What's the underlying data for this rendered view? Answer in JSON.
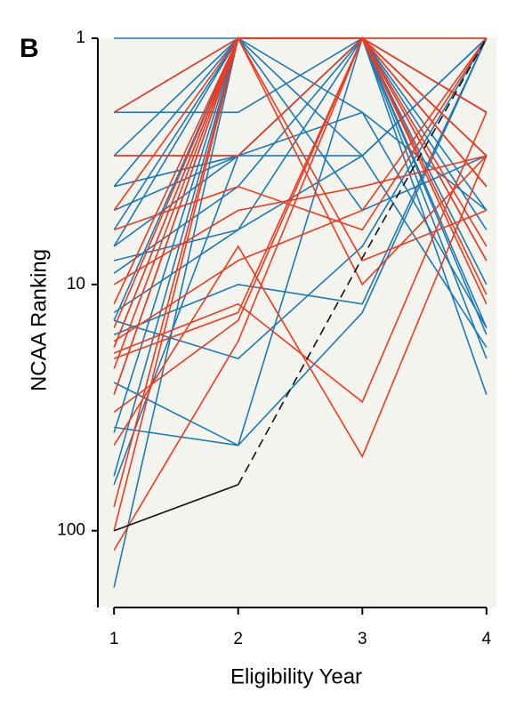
{
  "chart_data": {
    "type": "line",
    "panel_label": "B",
    "x_label": "Eligibility Year",
    "y_label": "NCAA Ranking",
    "x": [
      1,
      2,
      3,
      4
    ],
    "xlim": [
      0.87,
      4.08
    ],
    "xticks": [
      1,
      2,
      3,
      4
    ],
    "ylim": [
      1,
      205
    ],
    "yticks": [
      1,
      10,
      100
    ],
    "log_scale": true,
    "y_inverted": true,
    "background": "#f4f4ee",
    "series": [
      {
        "color": "#1c7ab5",
        "values": [
          1,
          1,
          1,
          1
        ]
      },
      {
        "color": "#1c7ab5",
        "values": [
          2,
          1,
          1,
          2
        ]
      },
      {
        "color": "#1c7ab5",
        "values": [
          2,
          2,
          1,
          5
        ]
      },
      {
        "color": "#1c7ab5",
        "values": [
          3,
          1,
          3,
          1
        ]
      },
      {
        "color": "#1c7ab5",
        "values": [
          4,
          3,
          1,
          2
        ]
      },
      {
        "color": "#1c7ab5",
        "values": [
          4,
          1,
          1,
          4
        ]
      },
      {
        "color": "#1c7ab5",
        "values": [
          5,
          3,
          2,
          15
        ]
      },
      {
        "color": "#1c7ab5",
        "values": [
          6,
          1,
          1,
          16
        ]
      },
      {
        "color": "#1c7ab5",
        "values": [
          7,
          3,
          1,
          3
        ]
      },
      {
        "color": "#1c7ab5",
        "values": [
          7,
          1,
          2,
          5
        ]
      },
      {
        "color": "#1c7ab5",
        "values": [
          8,
          6,
          3,
          18
        ]
      },
      {
        "color": "#1c7ab5",
        "values": [
          9,
          4,
          1,
          20
        ]
      },
      {
        "color": "#1c7ab5",
        "values": [
          13,
          6,
          1,
          8
        ]
      },
      {
        "color": "#1c7ab5",
        "values": [
          14,
          1,
          1,
          28
        ]
      },
      {
        "color": "#1c7ab5",
        "values": [
          16,
          10,
          12,
          1
        ]
      },
      {
        "color": "#1c7ab5",
        "values": [
          18,
          1,
          1,
          2
        ]
      },
      {
        "color": "#1c7ab5",
        "values": [
          25,
          45,
          1,
          15
        ]
      },
      {
        "color": "#1c7ab5",
        "values": [
          28,
          1,
          5,
          3
        ]
      },
      {
        "color": "#1c7ab5",
        "values": [
          38,
          45,
          13,
          1
        ]
      },
      {
        "color": "#1c7ab5",
        "values": [
          40,
          1,
          1,
          6
        ]
      },
      {
        "color": "#1c7ab5",
        "values": [
          60,
          1,
          1,
          3
        ]
      },
      {
        "color": "#1c7ab5",
        "values": [
          65,
          3,
          1,
          2
        ]
      },
      {
        "color": "#1c7ab5",
        "values": [
          170,
          1,
          1,
          10
        ]
      },
      {
        "color": "#1c7ab5",
        "values": [
          14,
          20,
          7,
          1
        ]
      },
      {
        "color": "#1c7ab5",
        "values": [
          3,
          3,
          3,
          1
        ]
      },
      {
        "color": "#f2391f",
        "values": [
          2,
          1,
          1,
          3
        ]
      },
      {
        "color": "#f2391f",
        "values": [
          3,
          3,
          1,
          8
        ]
      },
      {
        "color": "#f2391f",
        "values": [
          6,
          4,
          6,
          1
        ]
      },
      {
        "color": "#f2391f",
        "values": [
          10,
          5,
          4,
          3
        ]
      },
      {
        "color": "#f2391f",
        "values": [
          12,
          1,
          1,
          11
        ]
      },
      {
        "color": "#f2391f",
        "values": [
          17,
          8,
          5,
          1
        ]
      },
      {
        "color": "#f2391f",
        "values": [
          19,
          12,
          30,
          2
        ]
      },
      {
        "color": "#f2391f",
        "values": [
          20,
          13,
          1,
          12
        ]
      },
      {
        "color": "#f2391f",
        "values": [
          22,
          1,
          1,
          3
        ]
      },
      {
        "color": "#f2391f",
        "values": [
          28,
          1,
          8,
          5
        ]
      },
      {
        "color": "#f2391f",
        "values": [
          33,
          14,
          1,
          2
        ]
      },
      {
        "color": "#f2391f",
        "values": [
          45,
          7,
          50,
          3
        ]
      },
      {
        "color": "#f2391f",
        "values": [
          100,
          1,
          1,
          2
        ]
      },
      {
        "color": "#f2391f",
        "values": [
          120,
          17,
          1,
          1
        ]
      },
      {
        "color": "#f2391f",
        "values": [
          80,
          1,
          1,
          4
        ]
      },
      {
        "color": "#f2391f",
        "values": [
          18,
          1,
          10,
          3
        ]
      },
      {
        "color": "#f2391f",
        "values": [
          15,
          1,
          1,
          4
        ]
      },
      {
        "color": "#f2391f",
        "values": [
          5,
          1,
          1,
          7
        ]
      },
      {
        "color": "#111111",
        "values": [
          100,
          65,
          null,
          null
        ]
      },
      {
        "color": "#111111",
        "dashed": true,
        "values": [
          null,
          65,
          7.8,
          1
        ]
      }
    ]
  }
}
